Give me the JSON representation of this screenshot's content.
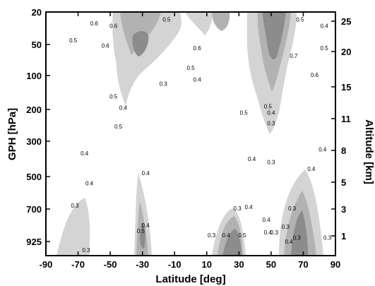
{
  "chart_data": {
    "type": "contour",
    "xlabel": "Latitude [deg]",
    "ylabel": "GPH [hPa]",
    "y2label": "Altitude [km]",
    "x_ticks": [
      -90,
      -70,
      -50,
      -30,
      -10,
      10,
      30,
      50,
      70,
      90
    ],
    "xlim": [
      -90,
      90
    ],
    "y_ticks": [
      "20",
      "50",
      "100",
      "200",
      "300",
      "500",
      "700",
      "925"
    ],
    "y2_ticks": [
      "25",
      "20",
      "15",
      "11",
      "8",
      "5",
      "3",
      "1"
    ],
    "fill_colors": {
      "light": "#d4d4d4",
      "mid": "#b2b2b2",
      "dark": "#8c8c8c"
    },
    "contour_labels": [
      {
        "text": "0.6",
        "lat": -60,
        "lev": 28
      },
      {
        "text": "0.5",
        "lat": -73,
        "lev": 45
      },
      {
        "text": "0.6",
        "lat": -53,
        "lev": 52
      },
      {
        "text": "0.6",
        "lat": -48,
        "lev": 30
      },
      {
        "text": "0.5",
        "lat": -15,
        "lev": 25
      },
      {
        "text": "0.6",
        "lat": 4,
        "lev": 55
      },
      {
        "text": "0.5",
        "lat": 0,
        "lev": 85
      },
      {
        "text": "0.4",
        "lat": 4,
        "lev": 110
      },
      {
        "text": "0.3",
        "lat": -17,
        "lev": 120
      },
      {
        "text": "0.5",
        "lat": -48,
        "lev": 155
      },
      {
        "text": "0.4",
        "lat": -42,
        "lev": 195
      },
      {
        "text": "0.5",
        "lat": -45,
        "lev": 250
      },
      {
        "text": "0.7",
        "lat": 64,
        "lev": 65
      },
      {
        "text": "0.6",
        "lat": 77,
        "lev": 100
      },
      {
        "text": "0.5",
        "lat": 83,
        "lev": 55
      },
      {
        "text": "0.4",
        "lat": 83,
        "lev": 30
      },
      {
        "text": "0.5",
        "lat": 68,
        "lev": 25
      },
      {
        "text": "0.5",
        "lat": 48,
        "lev": 190
      },
      {
        "text": "0.4",
        "lat": 50,
        "lev": 210
      },
      {
        "text": "0.3",
        "lat": 50,
        "lev": 240
      },
      {
        "text": "0.5",
        "lat": 33,
        "lev": 210
      },
      {
        "text": "0.4",
        "lat": 38,
        "lev": 390
      },
      {
        "text": "0.3",
        "lat": 50,
        "lev": 410
      },
      {
        "text": "0.4",
        "lat": 82,
        "lev": 340
      },
      {
        "text": "0.4",
        "lat": 75,
        "lev": 450
      },
      {
        "text": "0.4",
        "lat": -66,
        "lev": 360
      },
      {
        "text": "0.4",
        "lat": -63,
        "lev": 540
      },
      {
        "text": "0.3",
        "lat": -72,
        "lev": 680
      },
      {
        "text": "0.3",
        "lat": -65,
        "lev": 1000
      },
      {
        "text": "0.4",
        "lat": -28,
        "lev": 480
      },
      {
        "text": "0.4",
        "lat": -28,
        "lev": 810
      },
      {
        "text": "0.5",
        "lat": -31,
        "lev": 850
      },
      {
        "text": "0.3",
        "lat": 13,
        "lev": 880
      },
      {
        "text": "0.3",
        "lat": 29,
        "lev": 700
      },
      {
        "text": "0.4",
        "lat": 36,
        "lev": 690
      },
      {
        "text": "0.4",
        "lat": 22,
        "lev": 880
      },
      {
        "text": "0.5",
        "lat": 32,
        "lev": 880
      },
      {
        "text": "0.4",
        "lat": 48,
        "lev": 860
      },
      {
        "text": "0.3",
        "lat": 52,
        "lev": 860
      },
      {
        "text": "0.4",
        "lat": 47,
        "lev": 770
      },
      {
        "text": "0.3",
        "lat": 63,
        "lev": 700
      },
      {
        "text": "0.3",
        "lat": 59,
        "lev": 820
      },
      {
        "text": "0.4",
        "lat": 61,
        "lev": 930
      },
      {
        "text": "0.3",
        "lat": 66,
        "lev": 900
      },
      {
        "text": "0.3",
        "lat": 85,
        "lev": 900
      }
    ]
  }
}
